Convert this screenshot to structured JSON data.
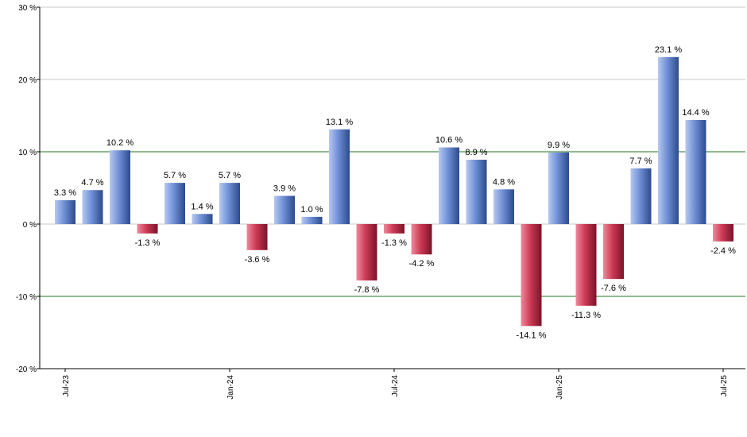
{
  "chart_data": {
    "type": "bar",
    "title": "",
    "xlabel": "",
    "ylabel": "",
    "ylim": [
      -20,
      30
    ],
    "yticks": [
      -20,
      -10,
      0,
      10,
      20,
      30
    ],
    "ytick_labels": [
      "-20 %",
      "-10 %",
      "0 %",
      "10 %",
      "20 %",
      "30 %"
    ],
    "highlight_gridlines": [
      -10,
      10
    ],
    "xticks": [
      {
        "label": "Jul-23",
        "bar_index": 0
      },
      {
        "label": "Jan-24",
        "bar_index": 6
      },
      {
        "label": "Jul-24",
        "bar_index": 12
      },
      {
        "label": "Jan-25",
        "bar_index": 18
      },
      {
        "label": "Jul-25",
        "bar_index": 24
      }
    ],
    "values": [
      3.3,
      4.7,
      10.2,
      -1.3,
      5.7,
      1.4,
      5.7,
      -3.6,
      3.9,
      1.0,
      13.1,
      -7.8,
      -1.3,
      -4.2,
      10.6,
      8.9,
      4.8,
      -14.1,
      9.9,
      -11.3,
      -7.6,
      7.7,
      23.1,
      14.4,
      -2.4
    ],
    "data_labels": [
      "3.3 %",
      "4.7 %",
      "10.2 %",
      "-1.3 %",
      "5.7 %",
      "1.4 %",
      "5.7 %",
      "-3.6 %",
      "3.9 %",
      "1.0 %",
      "13.1 %",
      "-7.8 %",
      "-1.3 %",
      "-4.2 %",
      "10.6 %",
      "8.9 %",
      "4.8 %",
      "-14.1 %",
      "9.9 %",
      "-11.3 %",
      "-7.6 %",
      "7.7 %",
      "23.1 %",
      "14.4 %",
      "-2.4 %"
    ],
    "colors": {
      "positive": "#6f8fd6",
      "negative": "#cc3a55",
      "grid": "#c8c8c8",
      "highlight_grid": "#1f7a1f",
      "axis": "#000000"
    },
    "grid": true,
    "legend": "none"
  }
}
